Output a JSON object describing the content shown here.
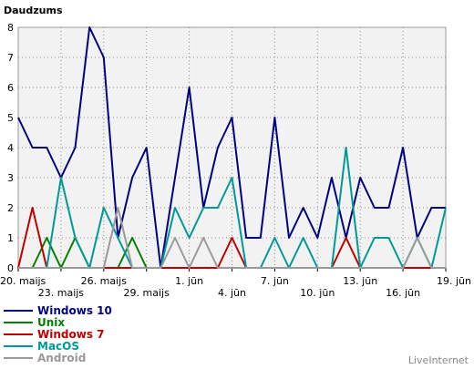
{
  "chart_data": {
    "type": "line",
    "title": "Daudzums",
    "ylim": [
      0,
      8
    ],
    "yticks": [
      "0",
      "1",
      "2",
      "3",
      "4",
      "5",
      "6",
      "7",
      "8"
    ],
    "grid": true,
    "legend_position": "bottom-left",
    "x_tick_labels": [
      {
        "label": "20. maijs",
        "index": 0,
        "row": 1
      },
      {
        "label": "23. maijs",
        "index": 3,
        "row": 2
      },
      {
        "label": "26. maijs",
        "index": 6,
        "row": 1
      },
      {
        "label": "29. maijs",
        "index": 9,
        "row": 2
      },
      {
        "label": "1. jūn",
        "index": 12,
        "row": 1
      },
      {
        "label": "4. jūn",
        "index": 15,
        "row": 2
      },
      {
        "label": "7. jūn",
        "index": 18,
        "row": 1
      },
      {
        "label": "10. jūn",
        "index": 21,
        "row": 2
      },
      {
        "label": "13. jūn",
        "index": 24,
        "row": 1
      },
      {
        "label": "16. jūn",
        "index": 27,
        "row": 2
      },
      {
        "label": "19. jūn",
        "index": 30,
        "row": 1
      }
    ],
    "series": [
      {
        "name": "Windows 10",
        "color": "#000080",
        "values": [
          5,
          4,
          4,
          3,
          4,
          8,
          7,
          1,
          3,
          4,
          0,
          3,
          6,
          2,
          4,
          5,
          1,
          1,
          5,
          1,
          2,
          1,
          3,
          1,
          3,
          2,
          2,
          4,
          1,
          2,
          2
        ]
      },
      {
        "name": "Unix",
        "color": "#008000",
        "values": [
          0,
          0,
          1,
          0,
          1,
          0,
          0,
          0,
          1,
          0,
          0,
          0,
          0,
          0,
          0,
          0,
          0,
          0,
          0,
          0,
          0,
          0,
          0,
          0,
          0,
          0,
          0,
          0,
          0,
          0,
          0
        ]
      },
      {
        "name": "Windows 7",
        "color": "#c00000",
        "values": [
          0,
          2,
          0,
          0,
          0,
          0,
          0,
          0,
          0,
          0,
          0,
          0,
          0,
          0,
          0,
          1,
          0,
          0,
          0,
          0,
          0,
          0,
          0,
          1,
          0,
          0,
          0,
          0,
          0,
          0,
          0
        ]
      },
      {
        "name": "MacOS",
        "color": "#009999",
        "values": [
          0,
          0,
          0,
          3,
          1,
          0,
          2,
          1,
          0,
          0,
          0,
          2,
          1,
          2,
          2,
          3,
          0,
          0,
          1,
          0,
          1,
          0,
          0,
          4,
          0,
          1,
          1,
          0,
          1,
          0,
          2
        ]
      },
      {
        "name": "Android",
        "color": "#999999",
        "values": [
          0,
          0,
          0,
          0,
          0,
          0,
          0,
          2,
          0,
          0,
          0,
          1,
          0,
          1,
          0,
          0,
          0,
          0,
          0,
          0,
          0,
          0,
          0,
          0,
          0,
          0,
          0,
          0,
          1,
          0,
          0
        ]
      }
    ]
  },
  "brand": "LiveInternet"
}
